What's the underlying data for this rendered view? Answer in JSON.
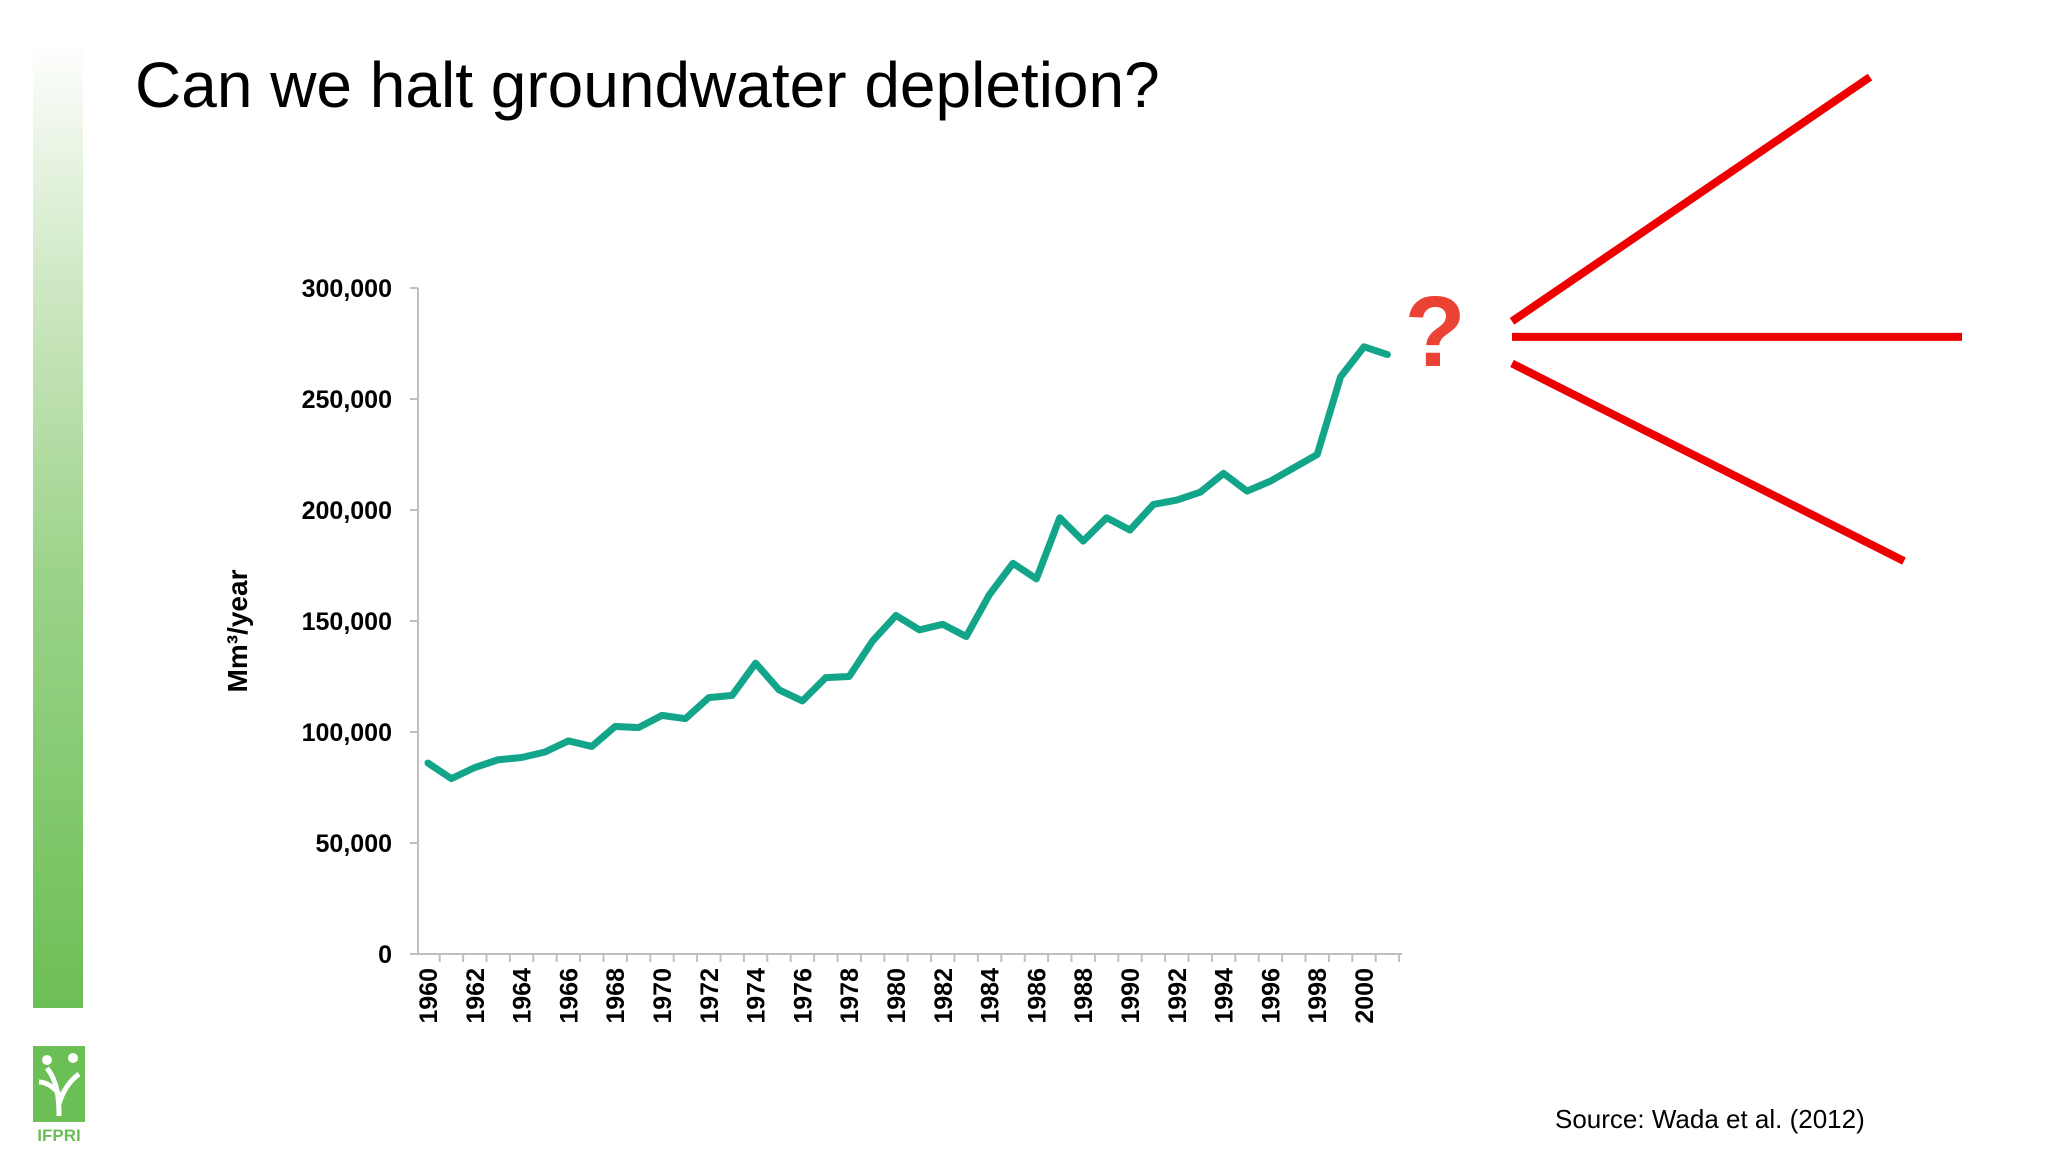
{
  "slide": {
    "title": "Can we halt groundwater depletion?",
    "source": "Source: Wada et al. (2012)",
    "logo_text": "IFPRI",
    "question_mark": "?"
  },
  "colors": {
    "series": "#13a58a",
    "projection": "#ee0000",
    "question_mark": "#ea4336",
    "logo_green": "#6cbf55"
  },
  "chart_data": {
    "type": "line",
    "title": "",
    "ylabel": "Mm³/year",
    "xlabel": "",
    "ylim": [
      0,
      300000
    ],
    "yticks": [
      0,
      50000,
      100000,
      150000,
      200000,
      250000,
      300000
    ],
    "ytick_labels": [
      "0",
      "50,000",
      "100,000",
      "150,000",
      "200,000",
      "250,000",
      "300,000"
    ],
    "xtick_labels": [
      "1960",
      "1962",
      "1964",
      "1966",
      "1968",
      "1970",
      "1972",
      "1974",
      "1976",
      "1978",
      "1980",
      "1982",
      "1984",
      "1986",
      "1988",
      "1990",
      "1992",
      "1994",
      "1996",
      "1998",
      "2000"
    ],
    "grid": false,
    "legend": "none",
    "x": [
      1960,
      1961,
      1962,
      1963,
      1964,
      1965,
      1966,
      1967,
      1968,
      1969,
      1970,
      1971,
      1972,
      1973,
      1974,
      1975,
      1976,
      1977,
      1978,
      1979,
      1980,
      1981,
      1982,
      1983,
      1984,
      1985,
      1986,
      1987,
      1988,
      1989,
      1990,
      1991,
      1992,
      1993,
      1994,
      1995,
      1996,
      1997,
      1998,
      1999,
      2000,
      2001
    ],
    "series": [
      {
        "values": [
          86000,
          79000,
          84000,
          87500,
          88500,
          91000,
          96000,
          93500,
          102500,
          102000,
          107500,
          106000,
          115500,
          116500,
          131000,
          119000,
          114000,
          124500,
          125000,
          141000,
          152500,
          146000,
          148500,
          143000,
          162000,
          176000,
          169000,
          196500,
          186000,
          196500,
          191000,
          202500,
          204500,
          208000,
          216500,
          208500,
          213000,
          219000,
          225000,
          260000,
          273500,
          270000
        ]
      }
    ],
    "projections": [
      {
        "trend": "increase",
        "value": 395000
      },
      {
        "trend": "stabilize",
        "value": 278000
      },
      {
        "trend": "decrease",
        "value": 177000
      }
    ]
  }
}
